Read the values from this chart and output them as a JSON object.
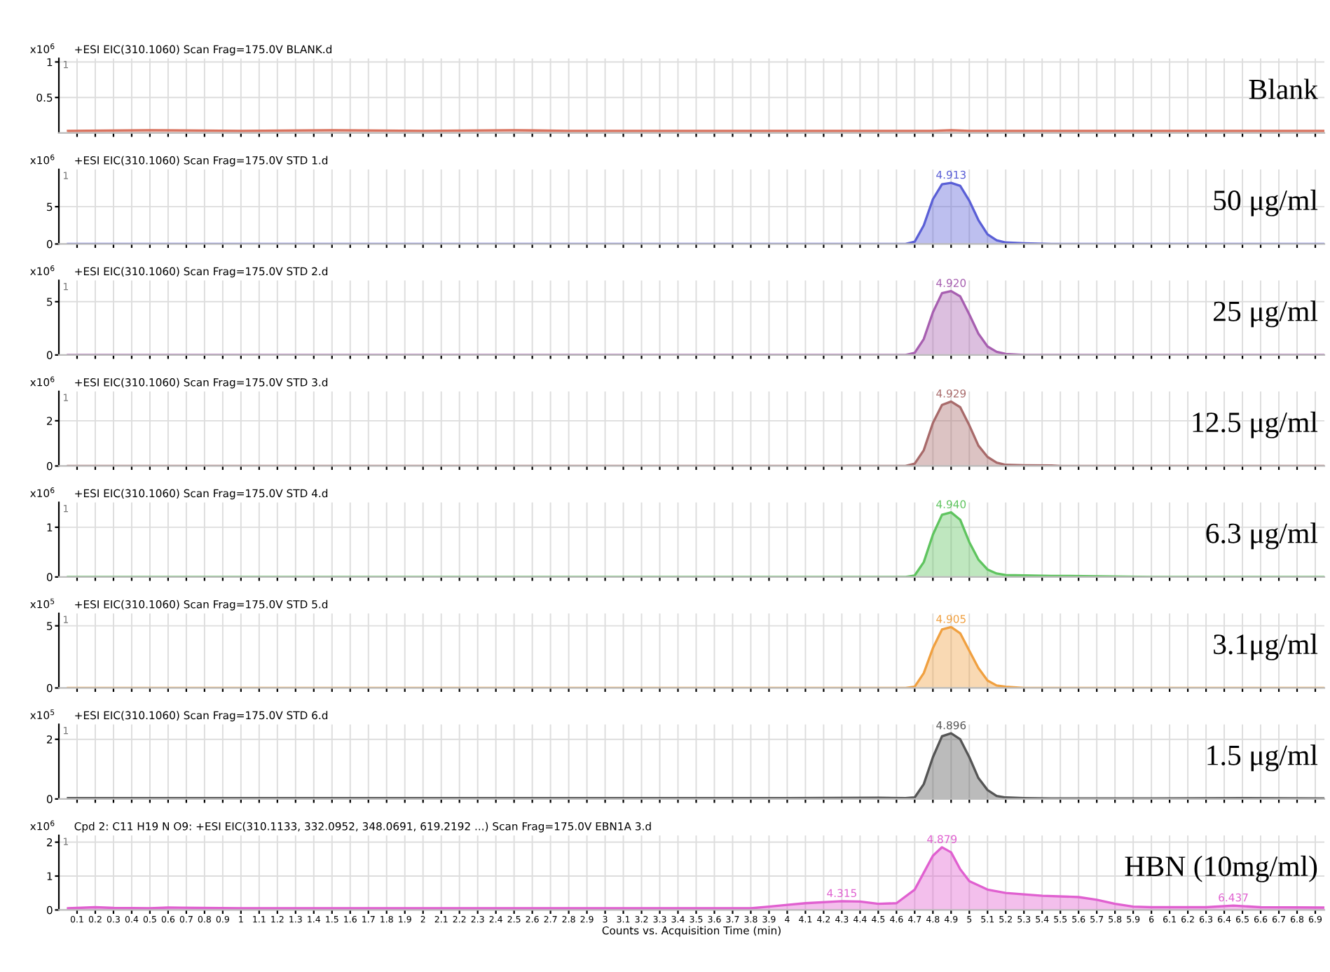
{
  "chart_data": [
    {
      "type": "area",
      "title": "+ESI EIC(310.1060) Scan Frag=175.0V BLANK.d",
      "ylabel": "x10$^{6}$",
      "xlim": [
        0,
        6.95
      ],
      "ylim": [
        0,
        1.05
      ],
      "yticks": [
        0.5,
        1
      ],
      "grid": true,
      "tick_labels": "y",
      "xticks": [
        0.1,
        0.2,
        0.3,
        0.4,
        0.5,
        0.6,
        0.7,
        0.8,
        0.9,
        1,
        1.1,
        1.2,
        1.3,
        1.4,
        1.5,
        1.6,
        1.7,
        1.8,
        1.9,
        2,
        2.1,
        2.2,
        2.3,
        2.4,
        2.5,
        2.6,
        2.7,
        2.8,
        2.9,
        3,
        3.1,
        3.2,
        3.3,
        3.4,
        3.5,
        3.6,
        3.7,
        3.8,
        3.9,
        4,
        4.1,
        4.2,
        4.3,
        4.4,
        4.5,
        4.6,
        4.7,
        4.8,
        4.9,
        5,
        5.1,
        5.2,
        5.3,
        5.4,
        5.5,
        5.6,
        5.7,
        5.8,
        5.9,
        6,
        6.1,
        6.2,
        6.3,
        6.4,
        6.5,
        6.6,
        6.7,
        6.8,
        6.9
      ],
      "annotations": [
        "1"
      ],
      "series": [
        {
          "name": "Blank",
          "color": "#d9735f",
          "x": [
            0.05,
            0.5,
            1,
            1.5,
            2,
            2.5,
            2.8,
            3,
            3.5,
            4,
            4.5,
            4.8,
            4.9,
            5,
            5.5,
            6,
            6.5,
            6.95
          ],
          "values": [
            0.03,
            0.04,
            0.03,
            0.04,
            0.03,
            0.04,
            0.03,
            0.03,
            0.03,
            0.03,
            0.03,
            0.03,
            0.04,
            0.03,
            0.03,
            0.03,
            0.03,
            0.03
          ]
        }
      ]
    },
    {
      "type": "area",
      "title": "+ESI EIC(310.1060) Scan Frag=175.0V STD 1.d",
      "ylabel": "x10$^{6}$",
      "xlim": [
        0,
        6.95
      ],
      "ylim": [
        0,
        10
      ],
      "yticks": [
        0,
        5
      ],
      "grid": true,
      "tick_labels": "y",
      "xticks": [
        0.1,
        0.2,
        0.3,
        0.4,
        0.5,
        0.6,
        0.7,
        0.8,
        0.9,
        1,
        1.1,
        1.2,
        1.3,
        1.4,
        1.5,
        1.6,
        1.7,
        1.8,
        1.9,
        2,
        2.1,
        2.2,
        2.3,
        2.4,
        2.5,
        2.6,
        2.7,
        2.8,
        2.9,
        3,
        3.1,
        3.2,
        3.3,
        3.4,
        3.5,
        3.6,
        3.7,
        3.8,
        3.9,
        4,
        4.1,
        4.2,
        4.3,
        4.4,
        4.5,
        4.6,
        4.7,
        4.8,
        4.9,
        5,
        5.1,
        5.2,
        5.3,
        5.4,
        5.5,
        5.6,
        5.7,
        5.8,
        5.9,
        6,
        6.1,
        6.2,
        6.3,
        6.4,
        6.5,
        6.6,
        6.7,
        6.8,
        6.9
      ],
      "annotations": [
        "1",
        {
          "text": "4.913",
          "x": 4.9,
          "y": 8.2
        }
      ],
      "series": [
        {
          "name": "50 μg/ml",
          "color": "#5a5fd6",
          "x": [
            0.05,
            0.5,
            1,
            1.5,
            2,
            2.5,
            3,
            3.5,
            4,
            4.5,
            4.65,
            4.7,
            4.75,
            4.8,
            4.85,
            4.9,
            4.95,
            5.0,
            5.05,
            5.1,
            5.15,
            5.2,
            5.3,
            5.45,
            5.5,
            6,
            6.5,
            6.95
          ],
          "values": [
            0,
            0,
            0,
            0,
            0,
            0,
            0,
            0,
            0,
            0,
            0,
            0.3,
            2.5,
            6.0,
            8.0,
            8.2,
            7.8,
            5.8,
            3.2,
            1.3,
            0.5,
            0.2,
            0.1,
            0,
            0,
            0,
            0,
            0
          ]
        }
      ]
    },
    {
      "type": "area",
      "title": "+ESI EIC(310.1060) Scan Frag=175.0V STD 2.d",
      "ylabel": "x10$^{6}$",
      "xlim": [
        0,
        6.95
      ],
      "ylim": [
        0,
        7
      ],
      "yticks": [
        0,
        5
      ],
      "grid": true,
      "tick_labels": "y",
      "xticks": [
        0.1,
        0.2,
        0.3,
        0.4,
        0.5,
        0.6,
        0.7,
        0.8,
        0.9,
        1,
        1.1,
        1.2,
        1.3,
        1.4,
        1.5,
        1.6,
        1.7,
        1.8,
        1.9,
        2,
        2.1,
        2.2,
        2.3,
        2.4,
        2.5,
        2.6,
        2.7,
        2.8,
        2.9,
        3,
        3.1,
        3.2,
        3.3,
        3.4,
        3.5,
        3.6,
        3.7,
        3.8,
        3.9,
        4,
        4.1,
        4.2,
        4.3,
        4.4,
        4.5,
        4.6,
        4.7,
        4.8,
        4.9,
        5,
        5.1,
        5.2,
        5.3,
        5.4,
        5.5,
        5.6,
        5.7,
        5.8,
        5.9,
        6,
        6.1,
        6.2,
        6.3,
        6.4,
        6.5,
        6.6,
        6.7,
        6.8,
        6.9
      ],
      "annotations": [
        "1",
        {
          "text": "4.920",
          "x": 4.9,
          "y": 6.0
        }
      ],
      "series": [
        {
          "name": "25 μg/ml",
          "color": "#a75fb0",
          "x": [
            0.05,
            0.5,
            1,
            1.5,
            2,
            2.5,
            3,
            3.5,
            4,
            4.5,
            4.65,
            4.7,
            4.75,
            4.8,
            4.85,
            4.9,
            4.95,
            5.0,
            5.05,
            5.1,
            5.15,
            5.2,
            5.3,
            5.45,
            5.5,
            6,
            6.5,
            6.95
          ],
          "values": [
            0,
            0,
            0,
            0,
            0,
            0,
            0,
            0,
            0,
            0,
            0,
            0.2,
            1.5,
            4.0,
            5.8,
            6.0,
            5.5,
            3.8,
            2.0,
            0.8,
            0.3,
            0.1,
            0,
            0,
            0,
            0,
            0,
            0
          ]
        }
      ]
    },
    {
      "type": "area",
      "title": "+ESI EIC(310.1060) Scan Frag=175.0V STD 3.d",
      "ylabel": "x10$^{6}$",
      "xlim": [
        0,
        6.95
      ],
      "ylim": [
        0,
        3.3
      ],
      "yticks": [
        0,
        2
      ],
      "grid": true,
      "tick_labels": "y",
      "xticks": [
        0.1,
        0.2,
        0.3,
        0.4,
        0.5,
        0.6,
        0.7,
        0.8,
        0.9,
        1,
        1.1,
        1.2,
        1.3,
        1.4,
        1.5,
        1.6,
        1.7,
        1.8,
        1.9,
        2,
        2.1,
        2.2,
        2.3,
        2.4,
        2.5,
        2.6,
        2.7,
        2.8,
        2.9,
        3,
        3.1,
        3.2,
        3.3,
        3.4,
        3.5,
        3.6,
        3.7,
        3.8,
        3.9,
        4,
        4.1,
        4.2,
        4.3,
        4.4,
        4.5,
        4.6,
        4.7,
        4.8,
        4.9,
        5,
        5.1,
        5.2,
        5.3,
        5.4,
        5.5,
        5.6,
        5.7,
        5.8,
        5.9,
        6,
        6.1,
        6.2,
        6.3,
        6.4,
        6.5,
        6.6,
        6.7,
        6.8,
        6.9
      ],
      "annotations": [
        "1",
        {
          "text": "4.929",
          "x": 4.9,
          "y": 2.85
        }
      ],
      "series": [
        {
          "name": "12.5 μg/ml",
          "color": "#a86a6a",
          "x": [
            0.05,
            0.5,
            1,
            1.5,
            2,
            2.5,
            3,
            3.5,
            4,
            4.5,
            4.65,
            4.7,
            4.75,
            4.8,
            4.85,
            4.9,
            4.95,
            5.0,
            5.05,
            5.1,
            5.15,
            5.2,
            5.3,
            5.45,
            5.5,
            6,
            6.5,
            6.95
          ],
          "values": [
            0,
            0,
            0,
            0,
            0,
            0,
            0,
            0,
            0,
            0,
            0,
            0.1,
            0.7,
            1.9,
            2.7,
            2.85,
            2.6,
            1.8,
            0.9,
            0.4,
            0.15,
            0.05,
            0.03,
            0.02,
            0,
            0,
            0,
            0
          ]
        }
      ]
    },
    {
      "type": "area",
      "title": "+ESI EIC(310.1060) Scan Frag=175.0V STD 4.d",
      "ylabel": "x10$^{6}$",
      "xlim": [
        0,
        6.95
      ],
      "ylim": [
        0,
        1.5
      ],
      "yticks": [
        0,
        1
      ],
      "grid": true,
      "tick_labels": "y",
      "xticks": [
        0.1,
        0.2,
        0.3,
        0.4,
        0.5,
        0.6,
        0.7,
        0.8,
        0.9,
        1,
        1.1,
        1.2,
        1.3,
        1.4,
        1.5,
        1.6,
        1.7,
        1.8,
        1.9,
        2,
        2.1,
        2.2,
        2.3,
        2.4,
        2.5,
        2.6,
        2.7,
        2.8,
        2.9,
        3,
        3.1,
        3.2,
        3.3,
        3.4,
        3.5,
        3.6,
        3.7,
        3.8,
        3.9,
        4,
        4.1,
        4.2,
        4.3,
        4.4,
        4.5,
        4.6,
        4.7,
        4.8,
        4.9,
        5,
        5.1,
        5.2,
        5.3,
        5.4,
        5.5,
        5.6,
        5.7,
        5.8,
        5.9,
        6,
        6.1,
        6.2,
        6.3,
        6.4,
        6.5,
        6.6,
        6.7,
        6.8,
        6.9
      ],
      "annotations": [
        "1",
        {
          "text": "4.940",
          "x": 4.9,
          "y": 1.3
        }
      ],
      "series": [
        {
          "name": "6.3 μg/ml",
          "color": "#5fc45f",
          "x": [
            0.05,
            0.5,
            1,
            1.5,
            2,
            2.5,
            3,
            3.5,
            4,
            4.5,
            4.65,
            4.7,
            4.75,
            4.8,
            4.85,
            4.9,
            4.95,
            5.0,
            5.05,
            5.1,
            5.15,
            5.2,
            5.3,
            5.45,
            5.55,
            6,
            6.5,
            6.95
          ],
          "values": [
            0,
            0,
            0,
            0,
            0,
            0,
            0,
            0,
            0,
            0,
            0,
            0.03,
            0.3,
            0.85,
            1.25,
            1.3,
            1.15,
            0.7,
            0.35,
            0.15,
            0.07,
            0.04,
            0.03,
            0.02,
            0.02,
            0,
            0,
            0
          ]
        }
      ]
    },
    {
      "type": "area",
      "title": "+ESI EIC(310.1060) Scan Frag=175.0V STD 5.d",
      "ylabel": "x10$^{5}$",
      "xlim": [
        0,
        6.95
      ],
      "ylim": [
        0,
        6
      ],
      "yticks": [
        0,
        5
      ],
      "grid": true,
      "tick_labels": "y",
      "xticks": [
        0.1,
        0.2,
        0.3,
        0.4,
        0.5,
        0.6,
        0.7,
        0.8,
        0.9,
        1,
        1.1,
        1.2,
        1.3,
        1.4,
        1.5,
        1.6,
        1.7,
        1.8,
        1.9,
        2,
        2.1,
        2.2,
        2.3,
        2.4,
        2.5,
        2.6,
        2.7,
        2.8,
        2.9,
        3,
        3.1,
        3.2,
        3.3,
        3.4,
        3.5,
        3.6,
        3.7,
        3.8,
        3.9,
        4,
        4.1,
        4.2,
        4.3,
        4.4,
        4.5,
        4.6,
        4.7,
        4.8,
        4.9,
        5,
        5.1,
        5.2,
        5.3,
        5.4,
        5.5,
        5.6,
        5.7,
        5.8,
        5.9,
        6,
        6.1,
        6.2,
        6.3,
        6.4,
        6.5,
        6.6,
        6.7,
        6.8,
        6.9
      ],
      "annotations": [
        "1",
        {
          "text": "4.905",
          "x": 4.9,
          "y": 4.9
        }
      ],
      "series": [
        {
          "name": "3.1μg/ml",
          "color": "#f0a040",
          "x": [
            0.05,
            0.5,
            1,
            1.5,
            2,
            2.5,
            3,
            3.5,
            4,
            4.5,
            4.65,
            4.7,
            4.75,
            4.8,
            4.85,
            4.9,
            4.95,
            5.0,
            5.05,
            5.1,
            5.15,
            5.2,
            5.3,
            5.45,
            5.5,
            6,
            6.5,
            6.95
          ],
          "values": [
            0,
            0,
            0,
            0,
            0,
            0,
            0,
            0,
            0,
            0,
            0,
            0.1,
            1.2,
            3.2,
            4.7,
            4.9,
            4.4,
            3.0,
            1.6,
            0.6,
            0.2,
            0.1,
            0,
            0,
            0,
            0,
            0,
            0
          ]
        }
      ]
    },
    {
      "type": "area",
      "title": "+ESI EIC(310.1060) Scan Frag=175.0V STD 6.d",
      "ylabel": "x10$^{5}$",
      "xlim": [
        0,
        6.95
      ],
      "ylim": [
        0,
        2.5
      ],
      "yticks": [
        0,
        2
      ],
      "grid": true,
      "tick_labels": "y",
      "xticks": [
        0.1,
        0.2,
        0.3,
        0.4,
        0.5,
        0.6,
        0.7,
        0.8,
        0.9,
        1,
        1.1,
        1.2,
        1.3,
        1.4,
        1.5,
        1.6,
        1.7,
        1.8,
        1.9,
        2,
        2.1,
        2.2,
        2.3,
        2.4,
        2.5,
        2.6,
        2.7,
        2.8,
        2.9,
        3,
        3.1,
        3.2,
        3.3,
        3.4,
        3.5,
        3.6,
        3.7,
        3.8,
        3.9,
        4,
        4.1,
        4.2,
        4.3,
        4.4,
        4.5,
        4.6,
        4.7,
        4.8,
        4.9,
        5,
        5.1,
        5.2,
        5.3,
        5.4,
        5.5,
        5.6,
        5.7,
        5.8,
        5.9,
        6,
        6.1,
        6.2,
        6.3,
        6.4,
        6.5,
        6.6,
        6.7,
        6.8,
        6.9
      ],
      "annotations": [
        "1",
        {
          "text": "4.896",
          "x": 4.9,
          "y": 2.2
        }
      ],
      "series": [
        {
          "name": "1.5 μg/ml",
          "color": "#555555",
          "x": [
            0.05,
            0.5,
            1,
            1.5,
            2,
            2.5,
            3,
            3.5,
            4,
            4.5,
            4.65,
            4.7,
            4.75,
            4.8,
            4.85,
            4.9,
            4.95,
            5.0,
            5.05,
            5.1,
            5.15,
            5.2,
            5.3,
            5.45,
            5.5,
            6,
            6.5,
            6.95
          ],
          "values": [
            0.03,
            0.03,
            0.03,
            0.03,
            0.03,
            0.03,
            0.03,
            0.03,
            0.03,
            0.04,
            0.03,
            0.05,
            0.5,
            1.4,
            2.1,
            2.2,
            2.0,
            1.4,
            0.7,
            0.3,
            0.1,
            0.05,
            0.03,
            0.02,
            0.02,
            0.02,
            0.03,
            0.02
          ]
        }
      ]
    },
    {
      "type": "area",
      "title": "Cpd 2: C11 H19 N O9: +ESI EIC(310.1133, 332.0952, 348.0691, 619.2192 ...) Scan Frag=175.0V EBN1A 3.d",
      "ylabel": "x10$^{6}$",
      "xlabel": "Counts vs. Acquisition Time (min)",
      "xlim": [
        0,
        6.95
      ],
      "ylim": [
        0,
        2.2
      ],
      "yticks": [
        0,
        1,
        2
      ],
      "grid": true,
      "xticks": [
        0.1,
        0.2,
        0.3,
        0.4,
        0.5,
        0.6,
        0.7,
        0.8,
        0.9,
        1,
        1.1,
        1.2,
        1.3,
        1.4,
        1.5,
        1.6,
        1.7,
        1.8,
        1.9,
        2,
        2.1,
        2.2,
        2.3,
        2.4,
        2.5,
        2.6,
        2.7,
        2.8,
        2.9,
        3,
        3.1,
        3.2,
        3.3,
        3.4,
        3.5,
        3.6,
        3.7,
        3.8,
        3.9,
        4,
        4.1,
        4.2,
        4.3,
        4.4,
        4.5,
        4.6,
        4.7,
        4.8,
        4.9,
        5,
        5.1,
        5.2,
        5.3,
        5.4,
        5.5,
        5.6,
        5.7,
        5.8,
        5.9,
        6,
        6.1,
        6.2,
        6.3,
        6.4,
        6.5,
        6.6,
        6.7,
        6.8,
        6.9
      ],
      "annotations": [
        "1",
        {
          "text": "4.879",
          "x": 4.85,
          "y": 1.85
        },
        {
          "text": "4.315",
          "x": 4.3,
          "y": 0.26
        },
        {
          "text": "6.437",
          "x": 6.45,
          "y": 0.13
        }
      ],
      "series": [
        {
          "name": "HBN (10mg/ml)",
          "color": "#e060d0",
          "x": [
            0.05,
            0.2,
            0.3,
            0.5,
            0.6,
            1,
            2,
            3,
            3.8,
            3.9,
            4.0,
            4.1,
            4.3,
            4.4,
            4.5,
            4.6,
            4.7,
            4.75,
            4.8,
            4.85,
            4.9,
            4.95,
            5.0,
            5.1,
            5.2,
            5.4,
            5.6,
            5.7,
            5.8,
            5.9,
            6.0,
            6.3,
            6.45,
            6.6,
            6.95
          ],
          "values": [
            0.05,
            0.08,
            0.06,
            0.05,
            0.07,
            0.05,
            0.05,
            0.05,
            0.05,
            0.1,
            0.15,
            0.2,
            0.26,
            0.25,
            0.18,
            0.2,
            0.6,
            1.1,
            1.6,
            1.85,
            1.7,
            1.2,
            0.85,
            0.6,
            0.5,
            0.42,
            0.38,
            0.3,
            0.18,
            0.1,
            0.08,
            0.08,
            0.13,
            0.08,
            0.07
          ]
        }
      ]
    }
  ]
}
